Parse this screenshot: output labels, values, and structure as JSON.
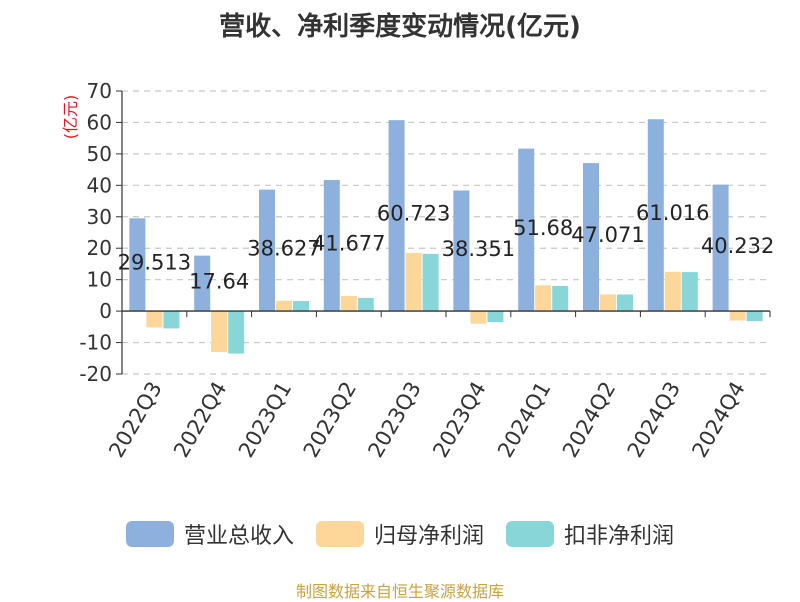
{
  "chart_data": {
    "type": "bar",
    "title": "营收、净利季度变动情况(亿元)",
    "ylabel": "(亿元)",
    "xlabel": "",
    "categories": [
      "2022Q3",
      "2022Q4",
      "2023Q1",
      "2023Q2",
      "2023Q3",
      "2023Q4",
      "2024Q1",
      "2024Q2",
      "2024Q3",
      "2024Q4"
    ],
    "series": [
      {
        "name": "营业总收入",
        "color": "#8eb0dd",
        "values": [
          29.513,
          17.64,
          38.627,
          41.677,
          60.723,
          38.351,
          51.68,
          47.071,
          61.016,
          40.232
        ],
        "labels": [
          "29.513",
          "17.64",
          "38.627",
          "41.677",
          "60.723",
          "38.351",
          "51.68",
          "47.071",
          "61.016",
          "40.232"
        ]
      },
      {
        "name": "归母净利润",
        "color": "#fdd69a",
        "values": [
          -5.2,
          -13.0,
          3.3,
          4.8,
          18.5,
          -4.0,
          8.2,
          5.3,
          12.5,
          -3.0
        ]
      },
      {
        "name": "扣非净利润",
        "color": "#88d6d8",
        "values": [
          -5.5,
          -13.5,
          3.2,
          4.2,
          18.2,
          -3.5,
          8.0,
          5.3,
          12.4,
          -3.2
        ]
      }
    ],
    "ylim": [
      -20,
      70
    ],
    "yticks": [
      70,
      60,
      50,
      40,
      30,
      20,
      10,
      0,
      -10,
      -20
    ],
    "grid": true,
    "legend": "bottom"
  },
  "source": "制图数据来自恒生聚源数据库"
}
